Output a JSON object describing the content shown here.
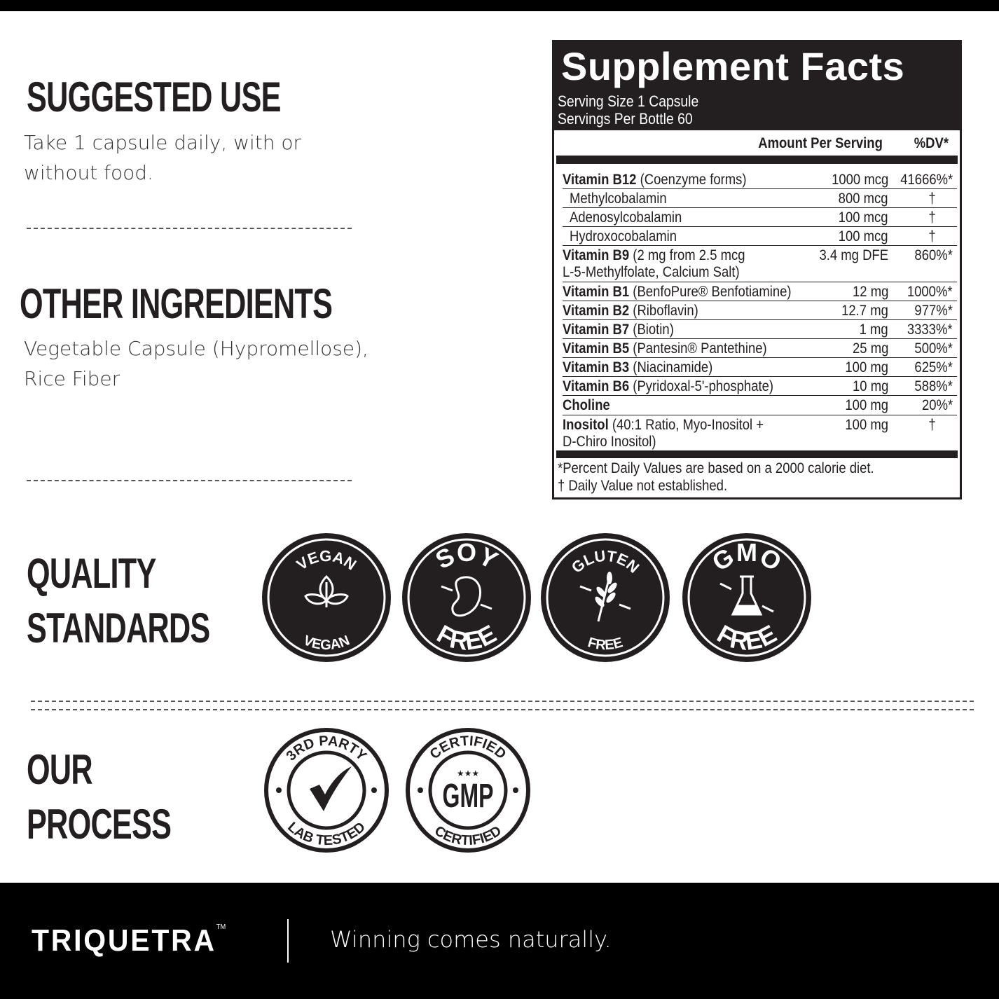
{
  "suggested_use": {
    "heading": "SUGGESTED USE",
    "text_line1": "Take 1 capsule daily, with or",
    "text_line2": "without food."
  },
  "other_ingredients": {
    "heading": "OTHER INGREDIENTS",
    "text_line1": "Vegetable Capsule (Hypromellose),",
    "text_line2": "Rice Fiber"
  },
  "supplement_facts": {
    "title": "Supplement Facts",
    "serving_size": "Serving Size 1 Capsule",
    "servings_per": "Servings Per Bottle 60",
    "col_amount": "Amount Per Serving",
    "col_dv": "%DV*",
    "rows": [
      {
        "name": "Vitamin B12",
        "detail": " (Coenzyme forms)",
        "detail2": "",
        "amount": "1000 mcg",
        "dv": "41666%*",
        "indent": false
      },
      {
        "name": "",
        "detail": "Methylcobalamin",
        "detail2": "",
        "amount": "800 mcg",
        "dv": "†",
        "indent": true
      },
      {
        "name": "",
        "detail": "Adenosylcobalamin",
        "detail2": "",
        "amount": "100 mcg",
        "dv": "†",
        "indent": true
      },
      {
        "name": "",
        "detail": "Hydroxocobalamin",
        "detail2": "",
        "amount": "100 mcg",
        "dv": "†",
        "indent": true
      },
      {
        "name": "Vitamin B9",
        "detail": " (2 mg from 2.5 mcg",
        "detail2": "L-5-Methylfolate, Calcium Salt)",
        "amount": "3.4 mg DFE",
        "dv": "860%*",
        "indent": false
      },
      {
        "name": "Vitamin B1",
        "detail": " (BenfoPure® Benfotiamine)",
        "detail2": "",
        "amount": "12 mg",
        "dv": "1000%*",
        "indent": false
      },
      {
        "name": "Vitamin B2",
        "detail": " (Riboflavin)",
        "detail2": "",
        "amount": "12.7 mg",
        "dv": "977%*",
        "indent": false
      },
      {
        "name": "Vitamin B7",
        "detail": " (Biotin)",
        "detail2": "",
        "amount": "1 mg",
        "dv": "3333%*",
        "indent": false
      },
      {
        "name": "Vitamin B5",
        "detail": " (Pantesin® Pantethine)",
        "detail2": "",
        "amount": "25 mg",
        "dv": "500%*",
        "indent": false
      },
      {
        "name": "Vitamin B3",
        "detail": " (Niacinamide)",
        "detail2": "",
        "amount": "100 mg",
        "dv": "625%*",
        "indent": false
      },
      {
        "name": "Vitamin B6",
        "detail": " (Pyridoxal-5'-phosphate)",
        "detail2": "",
        "amount": "10 mg",
        "dv": "588%*",
        "indent": false
      },
      {
        "name": "Choline",
        "detail": "",
        "detail2": "",
        "amount": "100 mg",
        "dv": "20%*",
        "indent": false
      },
      {
        "name": "Inositol",
        "detail": " (40:1 Ratio, Myo-Inositol +",
        "detail2": "D-Chiro Inositol)",
        "amount": "100 mg",
        "dv": "†",
        "indent": false
      }
    ],
    "footnote1": "*Percent Daily Values are based on a 2000 calorie diet.",
    "footnote2": "† Daily Value not established."
  },
  "quality": {
    "heading_line1": "QUALITY",
    "heading_line2": "STANDARDS",
    "badges": [
      {
        "top": "VEGAN",
        "bottom": "VEGAN",
        "icon": "leaf-icon"
      },
      {
        "top": "SOY",
        "bottom": "FREE",
        "icon": "bean-icon"
      },
      {
        "top": "GLUTEN",
        "bottom": "FREE",
        "icon": "wheat-icon"
      },
      {
        "top": "GMO",
        "bottom": "FREE",
        "icon": "flask-icon"
      }
    ]
  },
  "process": {
    "heading_line1": "OUR",
    "heading_line2": "PROCESS",
    "badges": [
      {
        "top": "3RD PARTY",
        "bottom": "LAB TESTED",
        "icon": "checkmark-icon"
      },
      {
        "top": "CERTIFIED",
        "center": "GMP",
        "bottom": "CERTIFIED",
        "icon": "stars-icon"
      }
    ]
  },
  "footer": {
    "brand": "TRIQUETRA",
    "tm": "TM",
    "tagline": "Winning comes naturally."
  },
  "colors": {
    "dark": "#231f20",
    "black": "#000000",
    "white": "#ffffff"
  }
}
